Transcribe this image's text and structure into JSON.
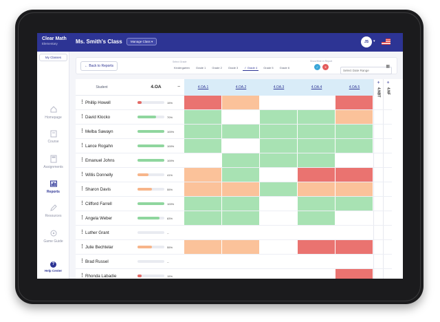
{
  "header": {
    "brand": "Clear Math",
    "brand_sub": "Elementary",
    "class_title": "Ms. Smith's Class",
    "manage_label": "Manage Class",
    "avatar_initials": "JS"
  },
  "sidebar": {
    "my_classes": "My Classes",
    "items": [
      {
        "label": "Homepage",
        "icon": "home-icon"
      },
      {
        "label": "Course",
        "icon": "book-icon"
      },
      {
        "label": "Assignments",
        "icon": "calculator-icon"
      },
      {
        "label": "Reports",
        "icon": "chart-icon"
      },
      {
        "label": "Resources",
        "icon": "pencil-icon"
      },
      {
        "label": "Game Guide",
        "icon": "game-icon"
      }
    ],
    "help": "Help Center"
  },
  "filters": {
    "back": "Back to Reports",
    "grade_label": "Select Grade",
    "grades": [
      "Kindergarten",
      "Grade 1",
      "Grade 2",
      "Grade 3",
      "Grade 4",
      "Grade 5",
      "Grade 6"
    ],
    "selected_grade": "Grade 4",
    "show_label": "Show/Hide in Report",
    "date_placeholder": "Select Date Range"
  },
  "table": {
    "student_header": "Student",
    "domain_header": "4.OA",
    "standards": [
      "4.OA.1",
      "4.OA.2",
      "4.OA.3",
      "4.OA.4",
      "4.OA.5"
    ],
    "side_columns": [
      "4.NBT",
      "4.NF"
    ],
    "students": [
      {
        "name": "Phillip Howell",
        "pct": "15%",
        "progress": 0.15,
        "scores": [
          "r",
          "o",
          "w",
          "w",
          "r"
        ]
      },
      {
        "name": "David Klocko",
        "pct": "70%",
        "progress": 0.7,
        "scores": [
          "g",
          "w",
          "g",
          "g",
          "o"
        ]
      },
      {
        "name": "Melba Sawayn",
        "pct": "100%",
        "progress": 1.0,
        "scores": [
          "g",
          "g",
          "g",
          "g",
          "g"
        ]
      },
      {
        "name": "Lance Rogahn",
        "pct": "100%",
        "progress": 1.0,
        "scores": [
          "g",
          "w",
          "g",
          "g",
          "g"
        ]
      },
      {
        "name": "Emanuel Johns",
        "pct": "100%",
        "progress": 1.0,
        "scores": [
          "w",
          "g",
          "g",
          "g",
          "w"
        ]
      },
      {
        "name": "Willis Donnelly",
        "pct": "41%",
        "progress": 0.41,
        "scores": [
          "o",
          "g",
          "w",
          "r",
          "r"
        ]
      },
      {
        "name": "Sharon Davis",
        "pct": "55%",
        "progress": 0.55,
        "scores": [
          "o",
          "o",
          "g",
          "o",
          "o"
        ]
      },
      {
        "name": "Clifford Farrell",
        "pct": "100%",
        "progress": 1.0,
        "scores": [
          "g",
          "g",
          "w",
          "g",
          "g"
        ]
      },
      {
        "name": "Angela Weber",
        "pct": "83%",
        "progress": 0.83,
        "scores": [
          "g",
          "g",
          "w",
          "g",
          "w"
        ]
      },
      {
        "name": "Luther Grant",
        "pct": "--",
        "progress": 0,
        "scores": [
          "w",
          "w",
          "w",
          "w",
          "w"
        ]
      },
      {
        "name": "Julie Bechtelar",
        "pct": "55%",
        "progress": 0.55,
        "scores": [
          "o",
          "o",
          "w",
          "r",
          "r"
        ]
      },
      {
        "name": "Brad Russel",
        "pct": "--",
        "progress": 0,
        "scores": [
          "w",
          "w",
          "w",
          "w",
          "w"
        ]
      },
      {
        "name": "Rhonda Labadie",
        "pct": "15%",
        "progress": 0.15,
        "scores": [
          "w",
          "w",
          "w",
          "w",
          "r"
        ]
      }
    ]
  },
  "colors": {
    "brand": "#2d3494",
    "mastered": "#a8e2b3",
    "partial": "#fbc29a",
    "struggling": "#ea7370",
    "none": "#ffffff",
    "bar_green": "#8fd69e",
    "bar_orange": "#f7b58a",
    "bar_red": "#e36a66"
  }
}
